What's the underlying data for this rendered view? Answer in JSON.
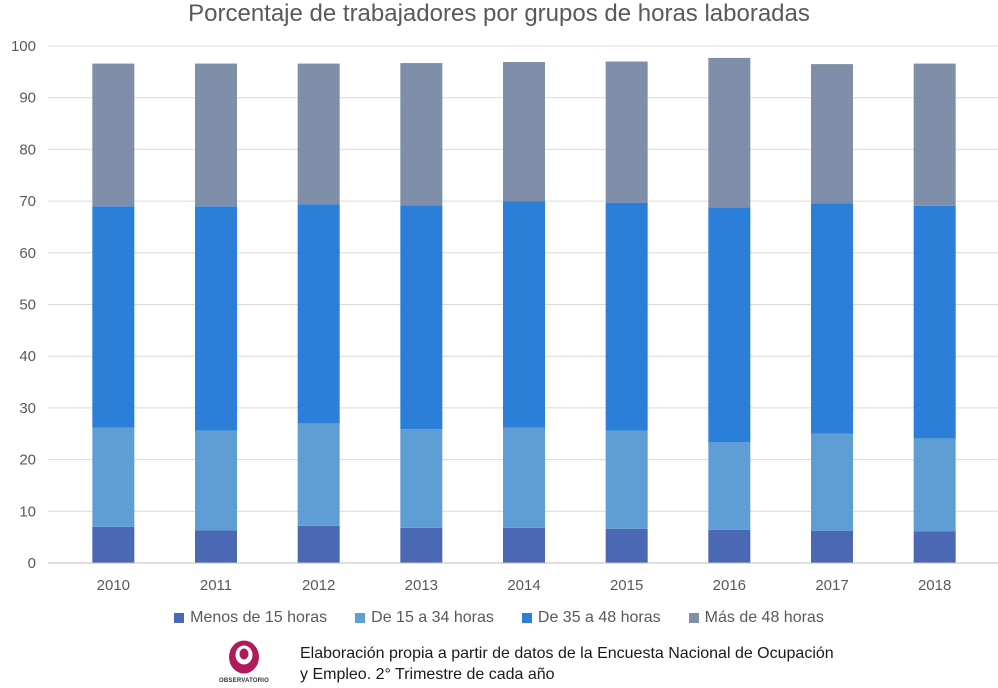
{
  "chart_data": {
    "type": "bar",
    "stacked": true,
    "title": "Porcentaje de trabajadores por grupos de horas laboradas",
    "categories": [
      "2010",
      "2011",
      "2012",
      "2013",
      "2014",
      "2015",
      "2016",
      "2017",
      "2018"
    ],
    "series": [
      {
        "name": "Menos de 15 horas",
        "color": "#4a68b3",
        "values": [
          7.0,
          6.3,
          7.2,
          6.8,
          6.8,
          6.6,
          6.4,
          6.2,
          6.1
        ]
      },
      {
        "name": "De 15 a 34 horas",
        "color": "#5f9ed4",
        "values": [
          19.2,
          19.3,
          19.8,
          19.1,
          19.4,
          19.0,
          17.0,
          18.8,
          18.0
        ]
      },
      {
        "name": "De 35 a 48 horas",
        "color": "#2b7fd8",
        "values": [
          42.8,
          43.4,
          42.4,
          43.3,
          43.8,
          44.1,
          45.4,
          44.6,
          45.0
        ]
      },
      {
        "name": "Más de 48 horas",
        "color": "#7f8fa9",
        "values": [
          27.6,
          27.6,
          27.2,
          27.5,
          26.9,
          27.3,
          28.9,
          26.9,
          27.5
        ]
      }
    ],
    "xlabel": "",
    "ylabel": "",
    "ylim": [
      0,
      100
    ],
    "yticks": [
      "0",
      "10",
      "20",
      "30",
      "40",
      "50",
      "60",
      "70",
      "80",
      "90",
      "100"
    ],
    "grid": true,
    "legend_position": "bottom"
  },
  "footer": {
    "logo_text": "OBSERVATORIO",
    "logo_color": "#b0195a",
    "source_line1": "Elaboración propia a partir de datos de la Encuesta Nacional de Ocupación",
    "source_line2": "y Empleo. 2° Trimestre de cada año"
  }
}
